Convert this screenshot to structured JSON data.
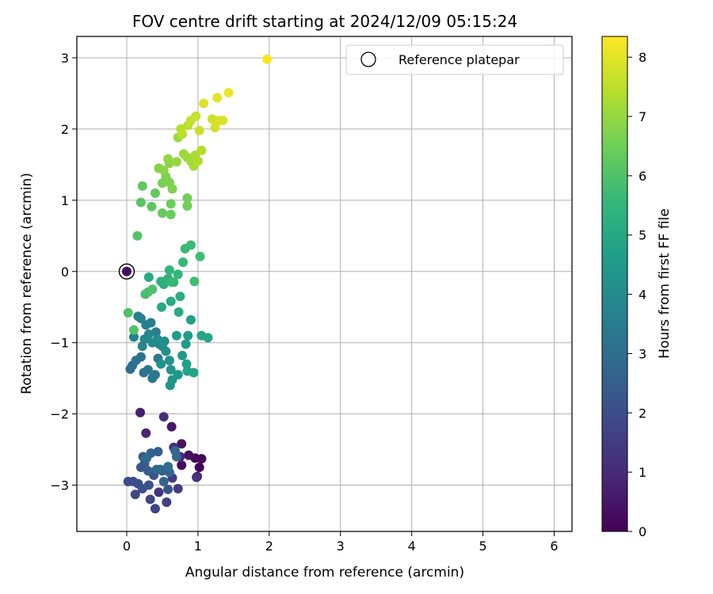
{
  "chart_data": {
    "type": "scatter",
    "title": "FOV centre drift starting at 2024/12/09 05:15:24",
    "xlabel": "Angular distance from reference (arcmin)",
    "ylabel": "Rotation from reference (arcmin)",
    "xlim": [
      -0.7,
      6.25
    ],
    "ylim": [
      -3.65,
      3.3
    ],
    "xticks": [
      0,
      1,
      2,
      3,
      4,
      5,
      6
    ],
    "yticks": [
      -3,
      -2,
      -1,
      0,
      1,
      2,
      3
    ],
    "xtick_labels": [
      "0",
      "1",
      "2",
      "3",
      "4",
      "5",
      "6"
    ],
    "ytick_labels": [
      "−3",
      "−2",
      "−1",
      "0",
      "1",
      "2",
      "3"
    ],
    "grid": true,
    "legend": {
      "label": "Reference platepar",
      "placement": "top-right"
    },
    "reference_point": {
      "x": 0,
      "y": 0,
      "h": 0.3
    },
    "colorbar": {
      "label": "Hours from first FF file",
      "colormap": "viridis",
      "range": [
        0,
        8.35
      ],
      "ticks": [
        0,
        1,
        2,
        3,
        4,
        5,
        6,
        7,
        8
      ],
      "tick_labels": [
        "0",
        "1",
        "2",
        "3",
        "4",
        "5",
        "6",
        "7",
        "8"
      ]
    },
    "colors": {
      "viridis_stops": [
        "#440154",
        "#482878",
        "#3e4989",
        "#31688e",
        "#26828e",
        "#1f9e89",
        "#35b779",
        "#6ece58",
        "#b5de2b",
        "#fde725"
      ]
    },
    "points": [
      {
        "x": 0.99,
        "y": -2.88,
        "h": 0.05
      },
      {
        "x": 1.02,
        "y": -2.75,
        "h": 0.1
      },
      {
        "x": 1.05,
        "y": -2.63,
        "h": 0.15
      },
      {
        "x": 0.96,
        "y": -2.62,
        "h": 0.2
      },
      {
        "x": 0.77,
        "y": -2.72,
        "h": 0.25
      },
      {
        "x": 0.87,
        "y": -2.58,
        "h": 0.35
      },
      {
        "x": 0.77,
        "y": -2.42,
        "h": 0.45
      },
      {
        "x": 0.63,
        "y": -2.18,
        "h": 0.55
      },
      {
        "x": 0.19,
        "y": -1.98,
        "h": 0.7
      },
      {
        "x": 0.27,
        "y": -2.27,
        "h": 0.85
      },
      {
        "x": 0.75,
        "y": -2.6,
        "h": 0.95
      },
      {
        "x": 0.66,
        "y": -2.47,
        "h": 1.05
      },
      {
        "x": 0.52,
        "y": -2.04,
        "h": 1.15
      },
      {
        "x": 0.98,
        "y": -2.89,
        "h": 1.2
      },
      {
        "x": 0.45,
        "y": -3.1,
        "h": 1.3
      },
      {
        "x": 0.64,
        "y": -2.9,
        "h": 1.4
      },
      {
        "x": 0.72,
        "y": -3.05,
        "h": 1.5
      },
      {
        "x": 0.56,
        "y": -3.24,
        "h": 1.6
      },
      {
        "x": 0.4,
        "y": -3.33,
        "h": 1.7
      },
      {
        "x": 0.33,
        "y": -3.2,
        "h": 1.75
      },
      {
        "x": 0.12,
        "y": -3.13,
        "h": 1.8
      },
      {
        "x": 0.02,
        "y": -2.95,
        "h": 1.9
      },
      {
        "x": 0.09,
        "y": -2.95,
        "h": 1.95
      },
      {
        "x": 0.16,
        "y": -2.98,
        "h": 2.0
      },
      {
        "x": 0.22,
        "y": -3.05,
        "h": 2.05
      },
      {
        "x": 0.31,
        "y": -3.0,
        "h": 2.1
      },
      {
        "x": 0.38,
        "y": -2.86,
        "h": 2.15
      },
      {
        "x": 0.5,
        "y": -2.8,
        "h": 2.2
      },
      {
        "x": 0.58,
        "y": -3.06,
        "h": 2.25
      },
      {
        "x": 0.2,
        "y": -2.75,
        "h": 2.3
      },
      {
        "x": 0.23,
        "y": -2.6,
        "h": 2.35
      },
      {
        "x": 0.25,
        "y": -2.7,
        "h": 2.4
      },
      {
        "x": 0.3,
        "y": -2.8,
        "h": 2.45
      },
      {
        "x": 0.34,
        "y": -2.55,
        "h": 2.5
      },
      {
        "x": 0.44,
        "y": -2.53,
        "h": 2.55
      },
      {
        "x": 0.47,
        "y": -2.78,
        "h": 2.6
      },
      {
        "x": 0.52,
        "y": -2.95,
        "h": 2.65
      },
      {
        "x": 0.6,
        "y": -2.82,
        "h": 2.7
      },
      {
        "x": 0.68,
        "y": -2.52,
        "h": 2.75
      },
      {
        "x": 0.7,
        "y": -2.6,
        "h": 2.8
      },
      {
        "x": 0.28,
        "y": -2.62,
        "h": 2.85
      },
      {
        "x": 0.42,
        "y": -2.78,
        "h": 2.9
      },
      {
        "x": 0.58,
        "y": -2.74,
        "h": 2.95
      },
      {
        "x": 0.08,
        "y": -1.32,
        "h": 3.0
      },
      {
        "x": 0.05,
        "y": -1.37,
        "h": 3.05
      },
      {
        "x": 0.13,
        "y": -1.25,
        "h": 3.1
      },
      {
        "x": 0.2,
        "y": -1.2,
        "h": 3.15
      },
      {
        "x": 0.24,
        "y": -1.42,
        "h": 3.2
      },
      {
        "x": 0.36,
        "y": -1.5,
        "h": 3.25
      },
      {
        "x": 0.3,
        "y": -1.38,
        "h": 3.3
      },
      {
        "x": 0.4,
        "y": -1.45,
        "h": 3.35
      },
      {
        "x": 0.44,
        "y": -1.22,
        "h": 3.4
      },
      {
        "x": 0.46,
        "y": -1.02,
        "h": 3.45
      },
      {
        "x": 0.41,
        "y": -0.85,
        "h": 3.5
      },
      {
        "x": 0.34,
        "y": -0.72,
        "h": 3.55
      },
      {
        "x": 0.27,
        "y": -0.75,
        "h": 3.6
      },
      {
        "x": 0.2,
        "y": -0.66,
        "h": 3.65
      },
      {
        "x": 0.16,
        "y": -0.63,
        "h": 3.7
      },
      {
        "x": 0.1,
        "y": -0.92,
        "h": 3.75
      },
      {
        "x": 0.22,
        "y": -1.05,
        "h": 3.8
      },
      {
        "x": 0.25,
        "y": -0.95,
        "h": 3.85
      },
      {
        "x": 0.31,
        "y": -0.88,
        "h": 3.9
      },
      {
        "x": 0.36,
        "y": -1.0,
        "h": 3.95
      },
      {
        "x": 0.43,
        "y": -0.95,
        "h": 4.0
      },
      {
        "x": 0.5,
        "y": -1.05,
        "h": 4.05
      },
      {
        "x": 0.53,
        "y": -0.98,
        "h": 4.1
      },
      {
        "x": 0.55,
        "y": -1.12,
        "h": 4.15
      },
      {
        "x": 0.48,
        "y": -1.3,
        "h": 4.2
      },
      {
        "x": 0.6,
        "y": -1.25,
        "h": 4.25
      },
      {
        "x": 0.62,
        "y": -1.38,
        "h": 4.3
      },
      {
        "x": 0.61,
        "y": -1.6,
        "h": 4.35
      },
      {
        "x": 0.64,
        "y": -1.52,
        "h": 4.4
      },
      {
        "x": 0.72,
        "y": -1.45,
        "h": 4.45
      },
      {
        "x": 0.78,
        "y": -1.18,
        "h": 4.5
      },
      {
        "x": 0.83,
        "y": -1.02,
        "h": 4.55
      },
      {
        "x": 0.86,
        "y": -0.9,
        "h": 4.6
      },
      {
        "x": 0.7,
        "y": -0.9,
        "h": 4.65
      },
      {
        "x": 0.9,
        "y": -0.68,
        "h": 4.7
      },
      {
        "x": 0.84,
        "y": -1.3,
        "h": 4.75
      },
      {
        "x": 0.85,
        "y": -1.4,
        "h": 4.8
      },
      {
        "x": 0.94,
        "y": -1.42,
        "h": 4.85
      },
      {
        "x": 1.05,
        "y": -0.9,
        "h": 4.9
      },
      {
        "x": 1.14,
        "y": -0.93,
        "h": 4.95
      },
      {
        "x": 0.31,
        "y": -0.08,
        "h": 5.0
      },
      {
        "x": 0.49,
        "y": -0.5,
        "h": 5.05
      },
      {
        "x": 0.62,
        "y": -0.42,
        "h": 5.1
      },
      {
        "x": 0.73,
        "y": -0.57,
        "h": 5.15
      },
      {
        "x": 0.75,
        "y": -0.35,
        "h": 5.2
      },
      {
        "x": 0.48,
        "y": -0.14,
        "h": 5.25
      },
      {
        "x": 0.52,
        "y": -0.18,
        "h": 5.3
      },
      {
        "x": 0.58,
        "y": -0.1,
        "h": 5.35
      },
      {
        "x": 0.6,
        "y": 0.02,
        "h": 5.4
      },
      {
        "x": 0.66,
        "y": -0.15,
        "h": 5.45
      },
      {
        "x": 0.72,
        "y": -0.04,
        "h": 5.5
      },
      {
        "x": 0.63,
        "y": -0.15,
        "h": 5.55
      },
      {
        "x": 0.79,
        "y": 0.13,
        "h": 5.6
      },
      {
        "x": 0.82,
        "y": 0.32,
        "h": 5.65
      },
      {
        "x": 0.9,
        "y": 0.37,
        "h": 5.7
      },
      {
        "x": 1.03,
        "y": 0.21,
        "h": 5.75
      },
      {
        "x": 0.95,
        "y": -0.14,
        "h": 5.8
      },
      {
        "x": 0.26,
        "y": -0.32,
        "h": 5.85
      },
      {
        "x": 0.3,
        "y": -0.29,
        "h": 5.9
      },
      {
        "x": 0.36,
        "y": -0.25,
        "h": 5.95
      },
      {
        "x": 0.02,
        "y": -0.58,
        "h": 6.0
      },
      {
        "x": 0.1,
        "y": -0.82,
        "h": 6.05
      },
      {
        "x": 0.15,
        "y": 0.5,
        "h": 6.1
      },
      {
        "x": 0.2,
        "y": 0.97,
        "h": 6.15
      },
      {
        "x": 0.35,
        "y": 0.91,
        "h": 6.2
      },
      {
        "x": 0.22,
        "y": 1.2,
        "h": 6.25
      },
      {
        "x": 0.4,
        "y": 1.1,
        "h": 6.3
      },
      {
        "x": 0.5,
        "y": 0.82,
        "h": 6.35
      },
      {
        "x": 0.62,
        "y": 0.8,
        "h": 6.4
      },
      {
        "x": 0.62,
        "y": 0.95,
        "h": 6.45
      },
      {
        "x": 0.85,
        "y": 0.92,
        "h": 6.5
      },
      {
        "x": 0.85,
        "y": 1.03,
        "h": 6.55
      },
      {
        "x": 0.5,
        "y": 1.24,
        "h": 6.6
      },
      {
        "x": 0.55,
        "y": 1.33,
        "h": 6.65
      },
      {
        "x": 0.6,
        "y": 1.25,
        "h": 6.7
      },
      {
        "x": 0.64,
        "y": 1.16,
        "h": 6.75
      },
      {
        "x": 0.45,
        "y": 1.45,
        "h": 6.8
      },
      {
        "x": 0.52,
        "y": 1.42,
        "h": 6.85
      },
      {
        "x": 0.6,
        "y": 1.52,
        "h": 6.9
      },
      {
        "x": 0.58,
        "y": 1.58,
        "h": 6.95
      },
      {
        "x": 0.7,
        "y": 1.54,
        "h": 7.0
      },
      {
        "x": 0.72,
        "y": 1.88,
        "h": 7.05
      },
      {
        "x": 0.8,
        "y": 1.65,
        "h": 7.1
      },
      {
        "x": 0.85,
        "y": 1.6,
        "h": 7.15
      },
      {
        "x": 0.9,
        "y": 1.55,
        "h": 7.2
      },
      {
        "x": 0.94,
        "y": 1.48,
        "h": 7.25
      },
      {
        "x": 0.96,
        "y": 1.63,
        "h": 7.3
      },
      {
        "x": 1.0,
        "y": 1.55,
        "h": 7.35
      },
      {
        "x": 1.05,
        "y": 1.7,
        "h": 7.4
      },
      {
        "x": 0.76,
        "y": 2.0,
        "h": 7.45
      },
      {
        "x": 0.78,
        "y": 1.93,
        "h": 7.5
      },
      {
        "x": 0.86,
        "y": 2.05,
        "h": 7.55
      },
      {
        "x": 0.9,
        "y": 2.12,
        "h": 7.6
      },
      {
        "x": 0.97,
        "y": 2.18,
        "h": 7.65
      },
      {
        "x": 1.02,
        "y": 1.98,
        "h": 7.7
      },
      {
        "x": 1.2,
        "y": 2.14,
        "h": 7.75
      },
      {
        "x": 1.24,
        "y": 2.02,
        "h": 7.8
      },
      {
        "x": 1.3,
        "y": 2.12,
        "h": 7.85
      },
      {
        "x": 1.35,
        "y": 2.12,
        "h": 7.9
      },
      {
        "x": 1.08,
        "y": 2.36,
        "h": 7.95
      },
      {
        "x": 1.27,
        "y": 2.44,
        "h": 8.05
      },
      {
        "x": 1.43,
        "y": 2.51,
        "h": 8.15
      },
      {
        "x": 1.97,
        "y": 2.98,
        "h": 8.3
      }
    ]
  }
}
